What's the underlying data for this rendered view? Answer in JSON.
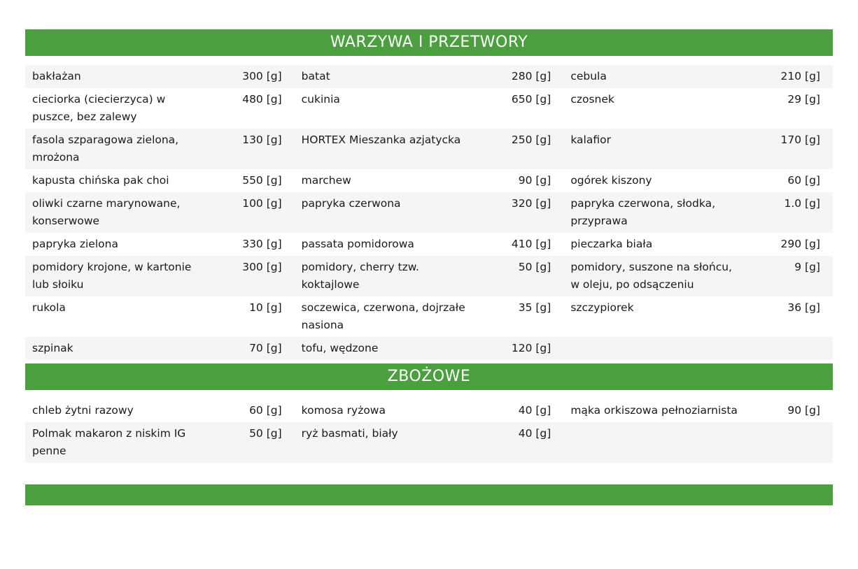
{
  "colors": {
    "header_green": "#4c9f3f",
    "header_text": "#ffffff",
    "row_alt": "#f5f5f5",
    "row_base": "#ffffff",
    "text": "#1a1a1a"
  },
  "sections": [
    {
      "title": "WARZYWA I PRZETWORY",
      "rows": [
        [
          {
            "name": "bakłażan",
            "amount": "300",
            "unit": "[g]"
          },
          {
            "name": "batat",
            "amount": "280",
            "unit": "[g]"
          },
          {
            "name": "cebula",
            "amount": "210",
            "unit": "[g]"
          }
        ],
        [
          {
            "name": "cieciorka (ciecierzyca) w puszce, bez zalewy",
            "amount": "480",
            "unit": "[g]"
          },
          {
            "name": "cukinia",
            "amount": "650",
            "unit": "[g]"
          },
          {
            "name": "czosnek",
            "amount": "29",
            "unit": "[g]"
          }
        ],
        [
          {
            "name": "fasola szparagowa zielona, mrożona",
            "amount": "130",
            "unit": "[g]"
          },
          {
            "name": "HORTEX Mieszanka azjatycka",
            "amount": "250",
            "unit": "[g]"
          },
          {
            "name": "kalafior",
            "amount": "170",
            "unit": "[g]"
          }
        ],
        [
          {
            "name": "kapusta chińska pak choi",
            "amount": "550",
            "unit": "[g]"
          },
          {
            "name": "marchew",
            "amount": "90",
            "unit": "[g]"
          },
          {
            "name": "ogórek kiszony",
            "amount": "60",
            "unit": "[g]"
          }
        ],
        [
          {
            "name": "oliwki czarne marynowane, konserwowe",
            "amount": "100",
            "unit": "[g]"
          },
          {
            "name": "papryka czerwona",
            "amount": "320",
            "unit": "[g]"
          },
          {
            "name": "papryka czerwona, słodka, przyprawa",
            "amount": "1.0",
            "unit": "[g]"
          }
        ],
        [
          {
            "name": "papryka zielona",
            "amount": "330",
            "unit": "[g]"
          },
          {
            "name": "passata pomidorowa",
            "amount": "410",
            "unit": "[g]"
          },
          {
            "name": "pieczarka biała",
            "amount": "290",
            "unit": "[g]"
          }
        ],
        [
          {
            "name": "pomidory krojone, w kartonie lub słoiku",
            "amount": "300",
            "unit": "[g]"
          },
          {
            "name": "pomidory, cherry tzw. koktajlowe",
            "amount": "50",
            "unit": "[g]"
          },
          {
            "name": "pomidory, suszone na słońcu, w oleju, po odsączeniu",
            "amount": "9",
            "unit": "[g]"
          }
        ],
        [
          {
            "name": "rukola",
            "amount": "10",
            "unit": "[g]"
          },
          {
            "name": "soczewica, czerwona, dojrzałe nasiona",
            "amount": "35",
            "unit": "[g]"
          },
          {
            "name": "szczypiorek",
            "amount": "36",
            "unit": "[g]"
          }
        ],
        [
          {
            "name": "szpinak",
            "amount": "70",
            "unit": "[g]"
          },
          {
            "name": "tofu, wędzone",
            "amount": "120",
            "unit": "[g]"
          },
          null
        ]
      ]
    },
    {
      "title": "ZBOŻOWE",
      "rows": [
        [
          {
            "name": "chleb żytni razowy",
            "amount": "60",
            "unit": "[g]"
          },
          {
            "name": "komosa ryżowa",
            "amount": "40",
            "unit": "[g]"
          },
          {
            "name": "mąka orkiszowa pełnoziarnista",
            "amount": "90",
            "unit": "[g]"
          }
        ],
        [
          {
            "name": "Polmak makaron z niskim IG penne",
            "amount": "50",
            "unit": "[g]"
          },
          {
            "name": "ryż basmati, biały",
            "amount": "40",
            "unit": "[g]"
          },
          null
        ]
      ]
    }
  ],
  "next_section_bar": {
    "title": ""
  }
}
